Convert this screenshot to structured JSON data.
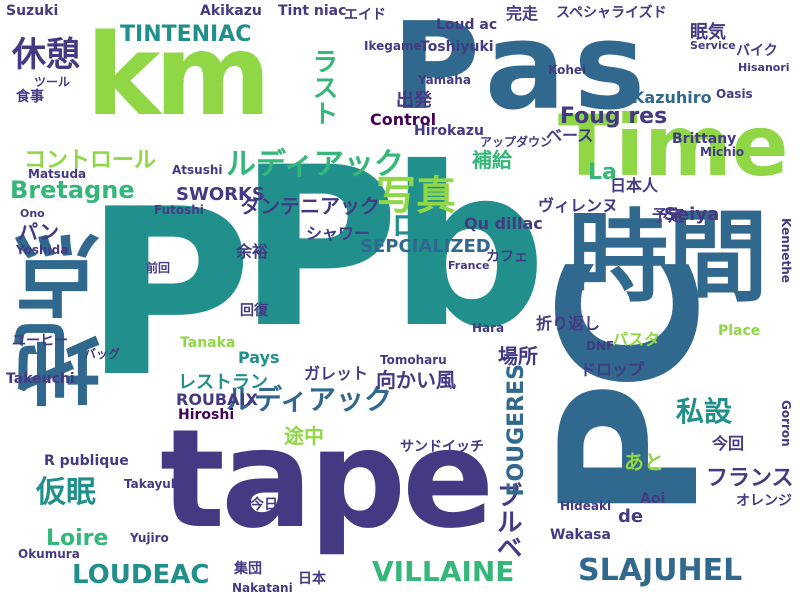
{
  "palette": {
    "lime": "#8fd744",
    "green": "#35b779",
    "teal": "#21908d",
    "blue": "#31688e",
    "indigo": "#443a83",
    "purple": "#440154"
  },
  "words": [
    "km",
    "Pas",
    "Time",
    "Pb",
    "P",
    "PC",
    "tape",
    "時間",
    "地点",
    "写真",
    "Bretagne",
    "ルディアック",
    "TINTENIAC",
    "休憩",
    "キロ",
    "タンテニアック",
    "コントロール",
    "SWORKS",
    "SEPCIALIZED",
    "ブルベ",
    "VILLAINE",
    "LOUDEAC",
    "SLAJUHEL",
    "FOUGERES",
    "Loire",
    "仮眠",
    "私設",
    "フランス",
    "ROUBAIX",
    "レストラン",
    "Control",
    "Foug res",
    "Suzuki",
    "Tanaka",
    "Hiroshi",
    "Yoshida",
    "Kazuhiro",
    "Tomoharu",
    "Hirokazu",
    "Seiya",
    "Ono",
    "Matsuda",
    "Takeuchi",
    "Kohei",
    "Yujiro",
    "Atsushi",
    "Futoshi",
    "Akikazu",
    "Tint niac",
    "Toshiyuki",
    "Loud ac",
    "Ikegame",
    "Qu dillac",
    "Place",
    "R publique",
    "ユーヒー",
    "バッグ",
    "シャワー",
    "補給",
    "余裕",
    "回復",
    "向かい風",
    "ガレット",
    "ドロップ",
    "パスタ",
    "場所",
    "折り返し",
    "途中",
    "出発",
    "前回",
    "今回",
    "今日",
    "食事",
    "眠気",
    "バイク",
    "オレンジ",
    "日本人",
    "予定",
    "あと",
    "de",
    "La",
    "Pays",
    "日本",
    "集団",
    "ラスト",
    "パン",
    "完走",
    "ベース",
    "アップダウン",
    "ヴィレンヌ",
    "サンドイッチ",
    "カフェ",
    "スペシャライズド",
    "エイド",
    "ツール",
    "France",
    "Oasis",
    "Brittany",
    "Michio",
    "Hara",
    "Yamaha",
    "DNF",
    "Aoi",
    "Gorron",
    "Kennethe",
    "Takayuki",
    "Okumura",
    "Nakatani",
    "Wakasa",
    "Hideaki",
    "Hisanori",
    "Service"
  ]
}
